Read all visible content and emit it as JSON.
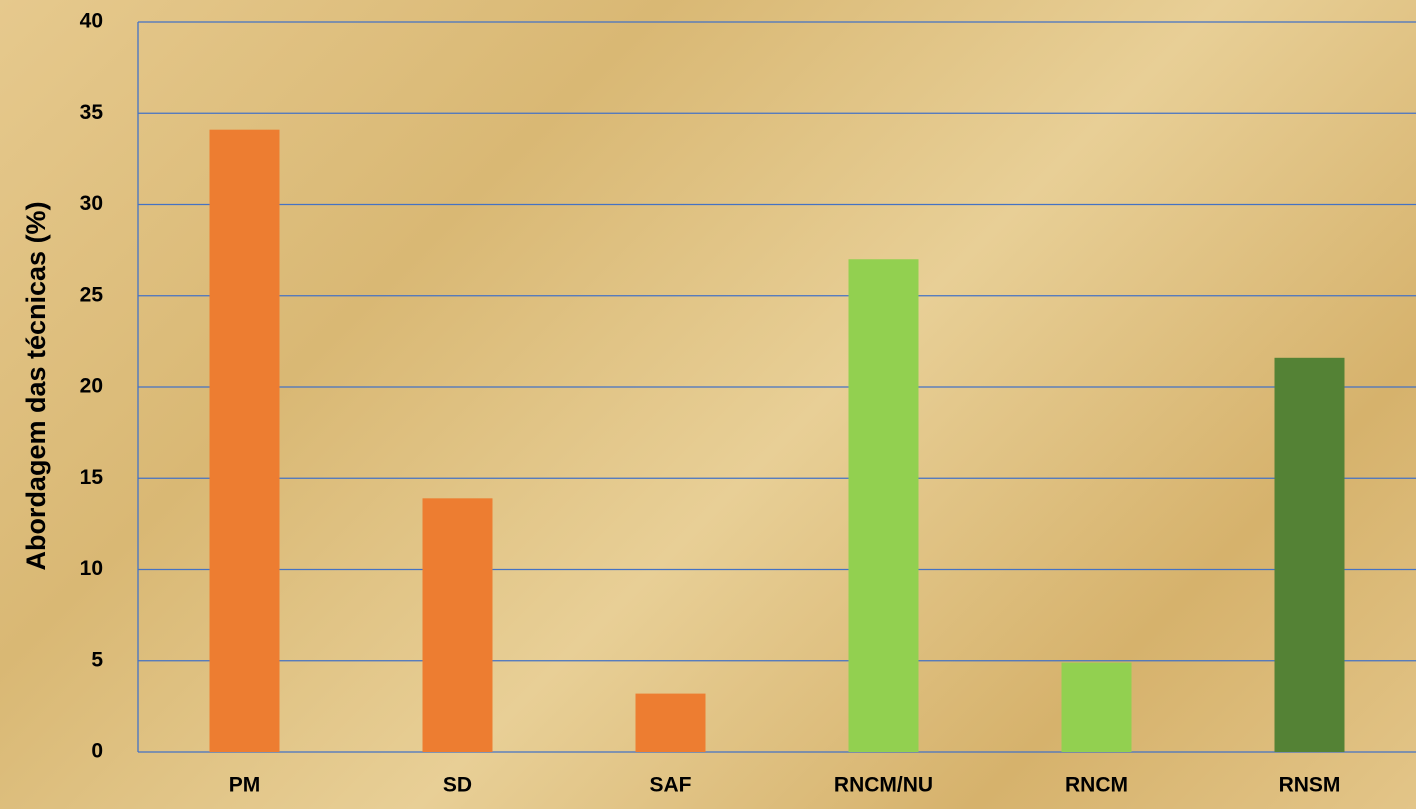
{
  "chart_data": {
    "type": "bar",
    "y_label": "Abordagem das técnicas (%)",
    "categories": [
      "PM",
      "SD",
      "SAF",
      "RNCM/NU",
      "RNCM",
      "RNSM"
    ],
    "values": [
      34.1,
      13.9,
      3.2,
      27.0,
      4.9,
      21.6
    ],
    "colors": [
      "#ED7D31",
      "#ED7D31",
      "#ED7D31",
      "#92D050",
      "#92D050",
      "#548235"
    ],
    "ylim": [
      0,
      40
    ],
    "yticks": [
      0,
      5,
      10,
      15,
      20,
      25,
      30,
      35,
      40
    ],
    "grid": true
  }
}
